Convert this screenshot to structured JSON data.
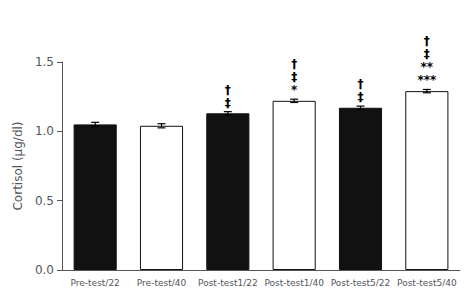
{
  "chart_data": {
    "type": "bar",
    "categories": [
      "Pre-test/22",
      "Pre-test/40",
      "Post-test1/22",
      "Post-test1/40",
      "Post-test5/22",
      "Post-test5/40"
    ],
    "values": [
      1.05,
      1.04,
      1.13,
      1.22,
      1.17,
      1.29
    ],
    "errors": [
      0.015,
      0.015,
      0.012,
      0.012,
      0.012,
      0.012
    ],
    "colors": [
      "#111111",
      "#ffffff",
      "#111111",
      "#ffffff",
      "#111111",
      "#ffffff"
    ],
    "ylabel": "Cortisol (μg/dl)",
    "ylim": [
      0.0,
      1.5
    ],
    "yticks": [
      {
        "value": 0,
        "label": "0.0"
      },
      0.5,
      {
        "value": 1,
        "label": "1.0"
      },
      1.5
    ],
    "grid": false,
    "annotations": [
      {
        "text": "‡",
        "category": "Post-test1/22"
      },
      {
        "text": "†",
        "category": "Post-test1/22"
      },
      {
        "text": "*",
        "category": "Post-test1/40"
      },
      {
        "text": "‡",
        "category": "Post-test1/40"
      },
      {
        "text": "†",
        "category": "Post-test1/40"
      },
      {
        "text": "‡",
        "category": "Post-test5/22"
      },
      {
        "text": "†",
        "category": "Post-test5/22"
      },
      {
        "text": "***",
        "category": "Post-test5/40"
      },
      {
        "text": "**",
        "category": "Post-test5/40"
      },
      {
        "text": "‡",
        "category": "Post-test5/40"
      },
      {
        "text": "†",
        "category": "Post-test5/40"
      }
    ]
  }
}
